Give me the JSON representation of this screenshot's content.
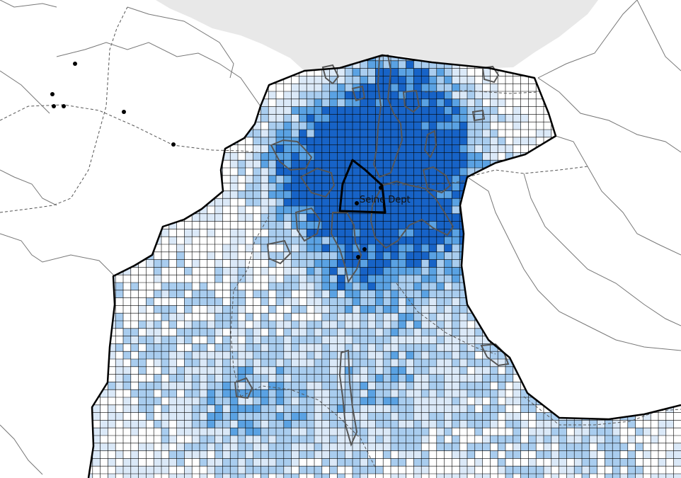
{
  "map": {
    "label": "Seine Dept",
    "colors": {
      "background": "#ffffff",
      "sea": "#e8e8e8",
      "grid_line": "#000000",
      "border": "#000000",
      "admin_line": "#555555",
      "urban_outline": "#555555",
      "fill_low": "#dbe9f8",
      "fill_mid": "#a9cdef",
      "fill_high": "#5aa2e3",
      "fill_max": "#1763c7"
    },
    "features": [
      "coastline",
      "sea",
      "department-boundary",
      "grid-cells",
      "urban-areas",
      "dashed-admin-lines",
      "point-markers",
      "highlight-outline"
    ]
  }
}
